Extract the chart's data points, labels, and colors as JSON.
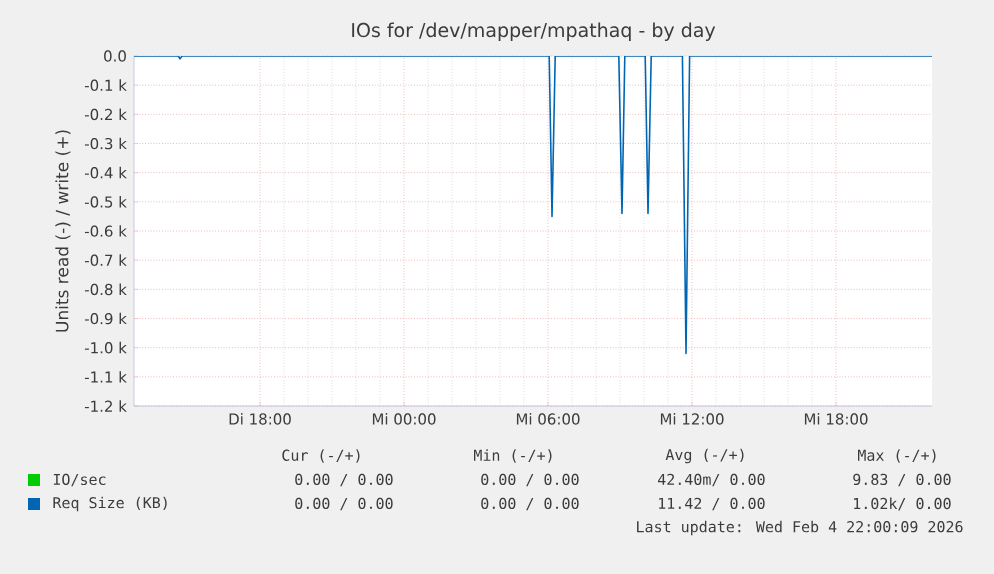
{
  "chart_data": {
    "type": "line",
    "title": "IOs for /dev/mapper/mpathaq - by day",
    "ylabel": "Units read (-) / write (+)",
    "series": [
      {
        "name": "IO/sec",
        "color": "#00cc00"
      },
      {
        "name": "Req Size (KB)",
        "color": "#0066b3",
        "x": [
          "2026-02-03T12:45",
          "2026-02-03T14:36",
          "2026-02-03T14:40",
          "2026-02-03T14:45",
          "2026-02-04T06:03",
          "2026-02-04T06:10",
          "2026-02-04T06:18",
          "2026-02-04T08:57",
          "2026-02-04T09:05",
          "2026-02-04T09:12",
          "2026-02-04T10:03",
          "2026-02-04T10:10",
          "2026-02-04T10:18",
          "2026-02-04T11:36",
          "2026-02-04T11:45",
          "2026-02-04T11:54",
          "2026-02-04T22:00"
        ],
        "values": [
          0,
          0,
          -0.01,
          0,
          0,
          -0.55,
          0,
          0,
          -0.54,
          0,
          0,
          -0.54,
          0,
          0,
          -1.02,
          0,
          0
        ]
      }
    ],
    "xlim": [
      "2026-02-03T12:45",
      "2026-02-04T22:00"
    ],
    "xticks": [
      {
        "value": "2026-02-03T18:00",
        "label": "Di 18:00"
      },
      {
        "value": "2026-02-04T00:00",
        "label": "Mi 00:00"
      },
      {
        "value": "2026-02-04T06:00",
        "label": "Mi 06:00"
      },
      {
        "value": "2026-02-04T12:00",
        "label": "Mi 12:00"
      },
      {
        "value": "2026-02-04T18:00",
        "label": "Mi 18:00"
      }
    ],
    "ylim": [
      -1.2,
      0
    ],
    "yticks": [
      {
        "value": 0,
        "label": "0.0"
      },
      {
        "value": -0.1,
        "label": "-0.1 k"
      },
      {
        "value": -0.2,
        "label": "-0.2 k"
      },
      {
        "value": -0.3,
        "label": "-0.3 k"
      },
      {
        "value": -0.4,
        "label": "-0.4 k"
      },
      {
        "value": -0.5,
        "label": "-0.5 k"
      },
      {
        "value": -0.6,
        "label": "-0.6 k"
      },
      {
        "value": -0.7,
        "label": "-0.7 k"
      },
      {
        "value": -0.8,
        "label": "-0.8 k"
      },
      {
        "value": -0.9,
        "label": "-0.9 k"
      },
      {
        "value": -1.0,
        "label": "-1.0 k"
      },
      {
        "value": -1.1,
        "label": "-1.1 k"
      },
      {
        "value": -1.2,
        "label": "-1.2 k"
      }
    ],
    "grid": true,
    "legend": "bottom",
    "annotations": [
      "Cur (-/+)",
      "Min (-/+)",
      "Avg (-/+)",
      "Max (-/+)",
      "0.00 / 0.00",
      "0.00 / 0.00",
      "42.40m/ 0.00",
      "9.83 / 0.00",
      "0.00 / 0.00",
      "0.00 / 0.00",
      "11.42 / 0.00",
      "1.02k/ 0.00",
      "Last update: Wed Feb  4 22:00:09 2026"
    ]
  }
}
